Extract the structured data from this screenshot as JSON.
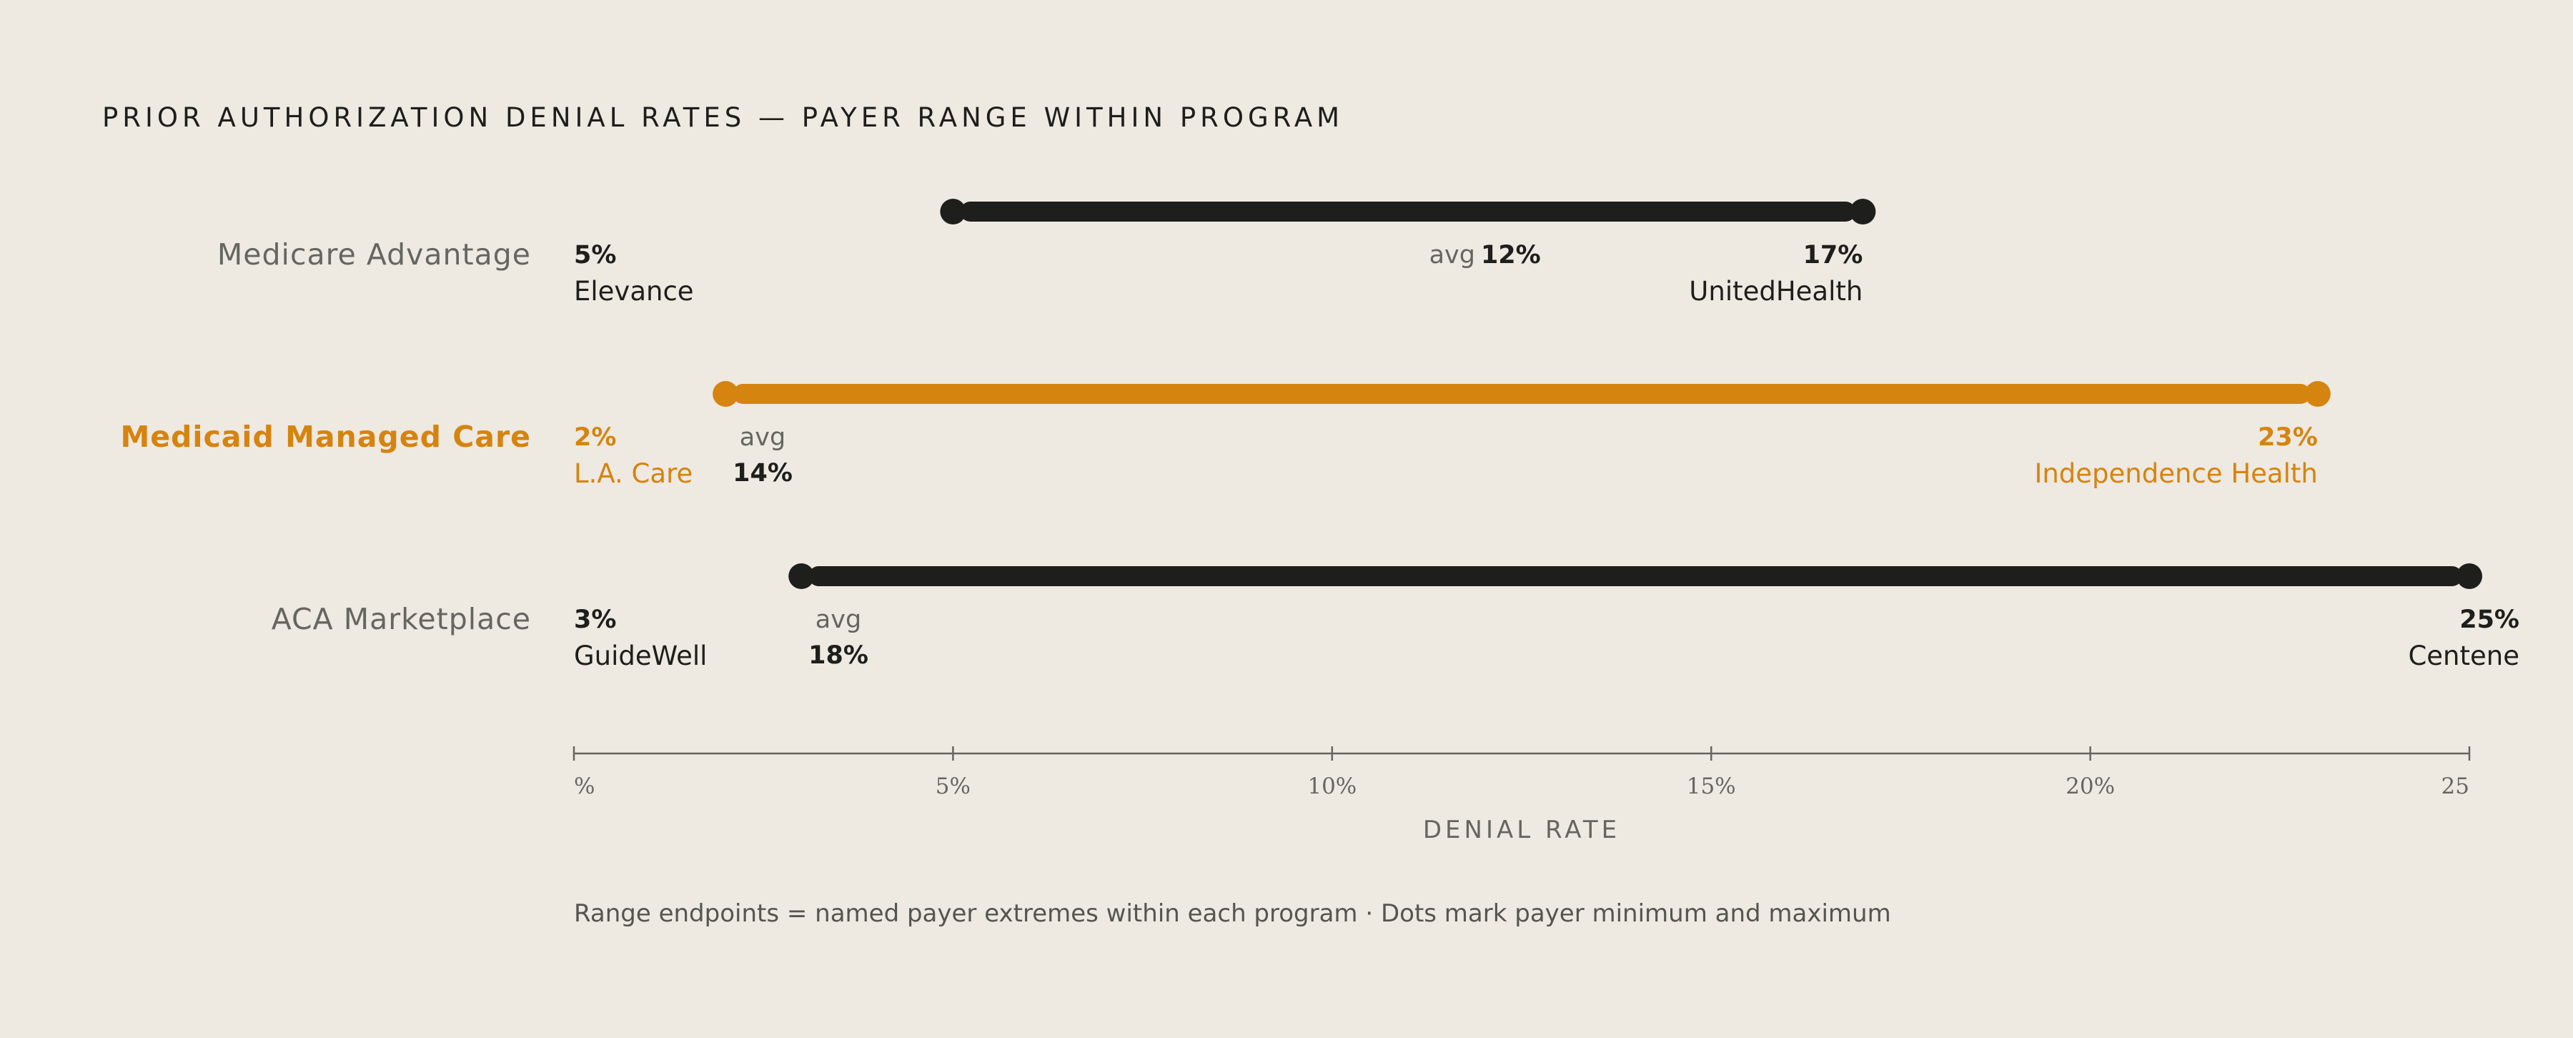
{
  "title": "PRIOR AUTHORIZATION DENIAL RATES — PAYER RANGE WITHIN PROGRAM",
  "footnote": "Range endpoints = named payer extremes within each program · Dots mark payer minimum and maximum",
  "colors": {
    "background": "#eee9e1",
    "dark": "#1e1e1c",
    "highlight": "#d5840f",
    "muted": "#666660"
  },
  "chart_data": {
    "type": "range",
    "title": "PRIOR AUTHORIZATION DENIAL RATES — PAYER RANGE WITHIN PROGRAM",
    "xlabel": "DENIAL RATE",
    "xlim": [
      0,
      25
    ],
    "x_ticks": [
      {
        "value": 0,
        "label": "%"
      },
      {
        "value": 5,
        "label": "5%"
      },
      {
        "value": 10,
        "label": "10%"
      },
      {
        "value": 15,
        "label": "15%"
      },
      {
        "value": 20,
        "label": "20%"
      },
      {
        "value": 25,
        "label": "25"
      }
    ],
    "avg_word": "avg",
    "rows": [
      {
        "category": "Medicare Advantage",
        "min": 5,
        "min_label": "5%",
        "min_payer": "Elevance",
        "avg": 12,
        "avg_label": "12%",
        "max": 17,
        "max_label": "17%",
        "max_payer": "UnitedHealth",
        "highlight": false
      },
      {
        "category": "Medicaid Managed Care",
        "min": 2,
        "min_label": "2%",
        "min_payer": "L.A. Care",
        "avg": 14,
        "avg_label": "14%",
        "max": 23,
        "max_label": "23%",
        "max_payer": "Independence Health",
        "highlight": true
      },
      {
        "category": "ACA Marketplace",
        "min": 3,
        "min_label": "3%",
        "min_payer": "GuideWell",
        "avg": 18,
        "avg_label": "18%",
        "max": 25,
        "max_label": "25%",
        "max_payer": "Centene",
        "highlight": false
      }
    ],
    "grid": false,
    "legend": "none"
  }
}
